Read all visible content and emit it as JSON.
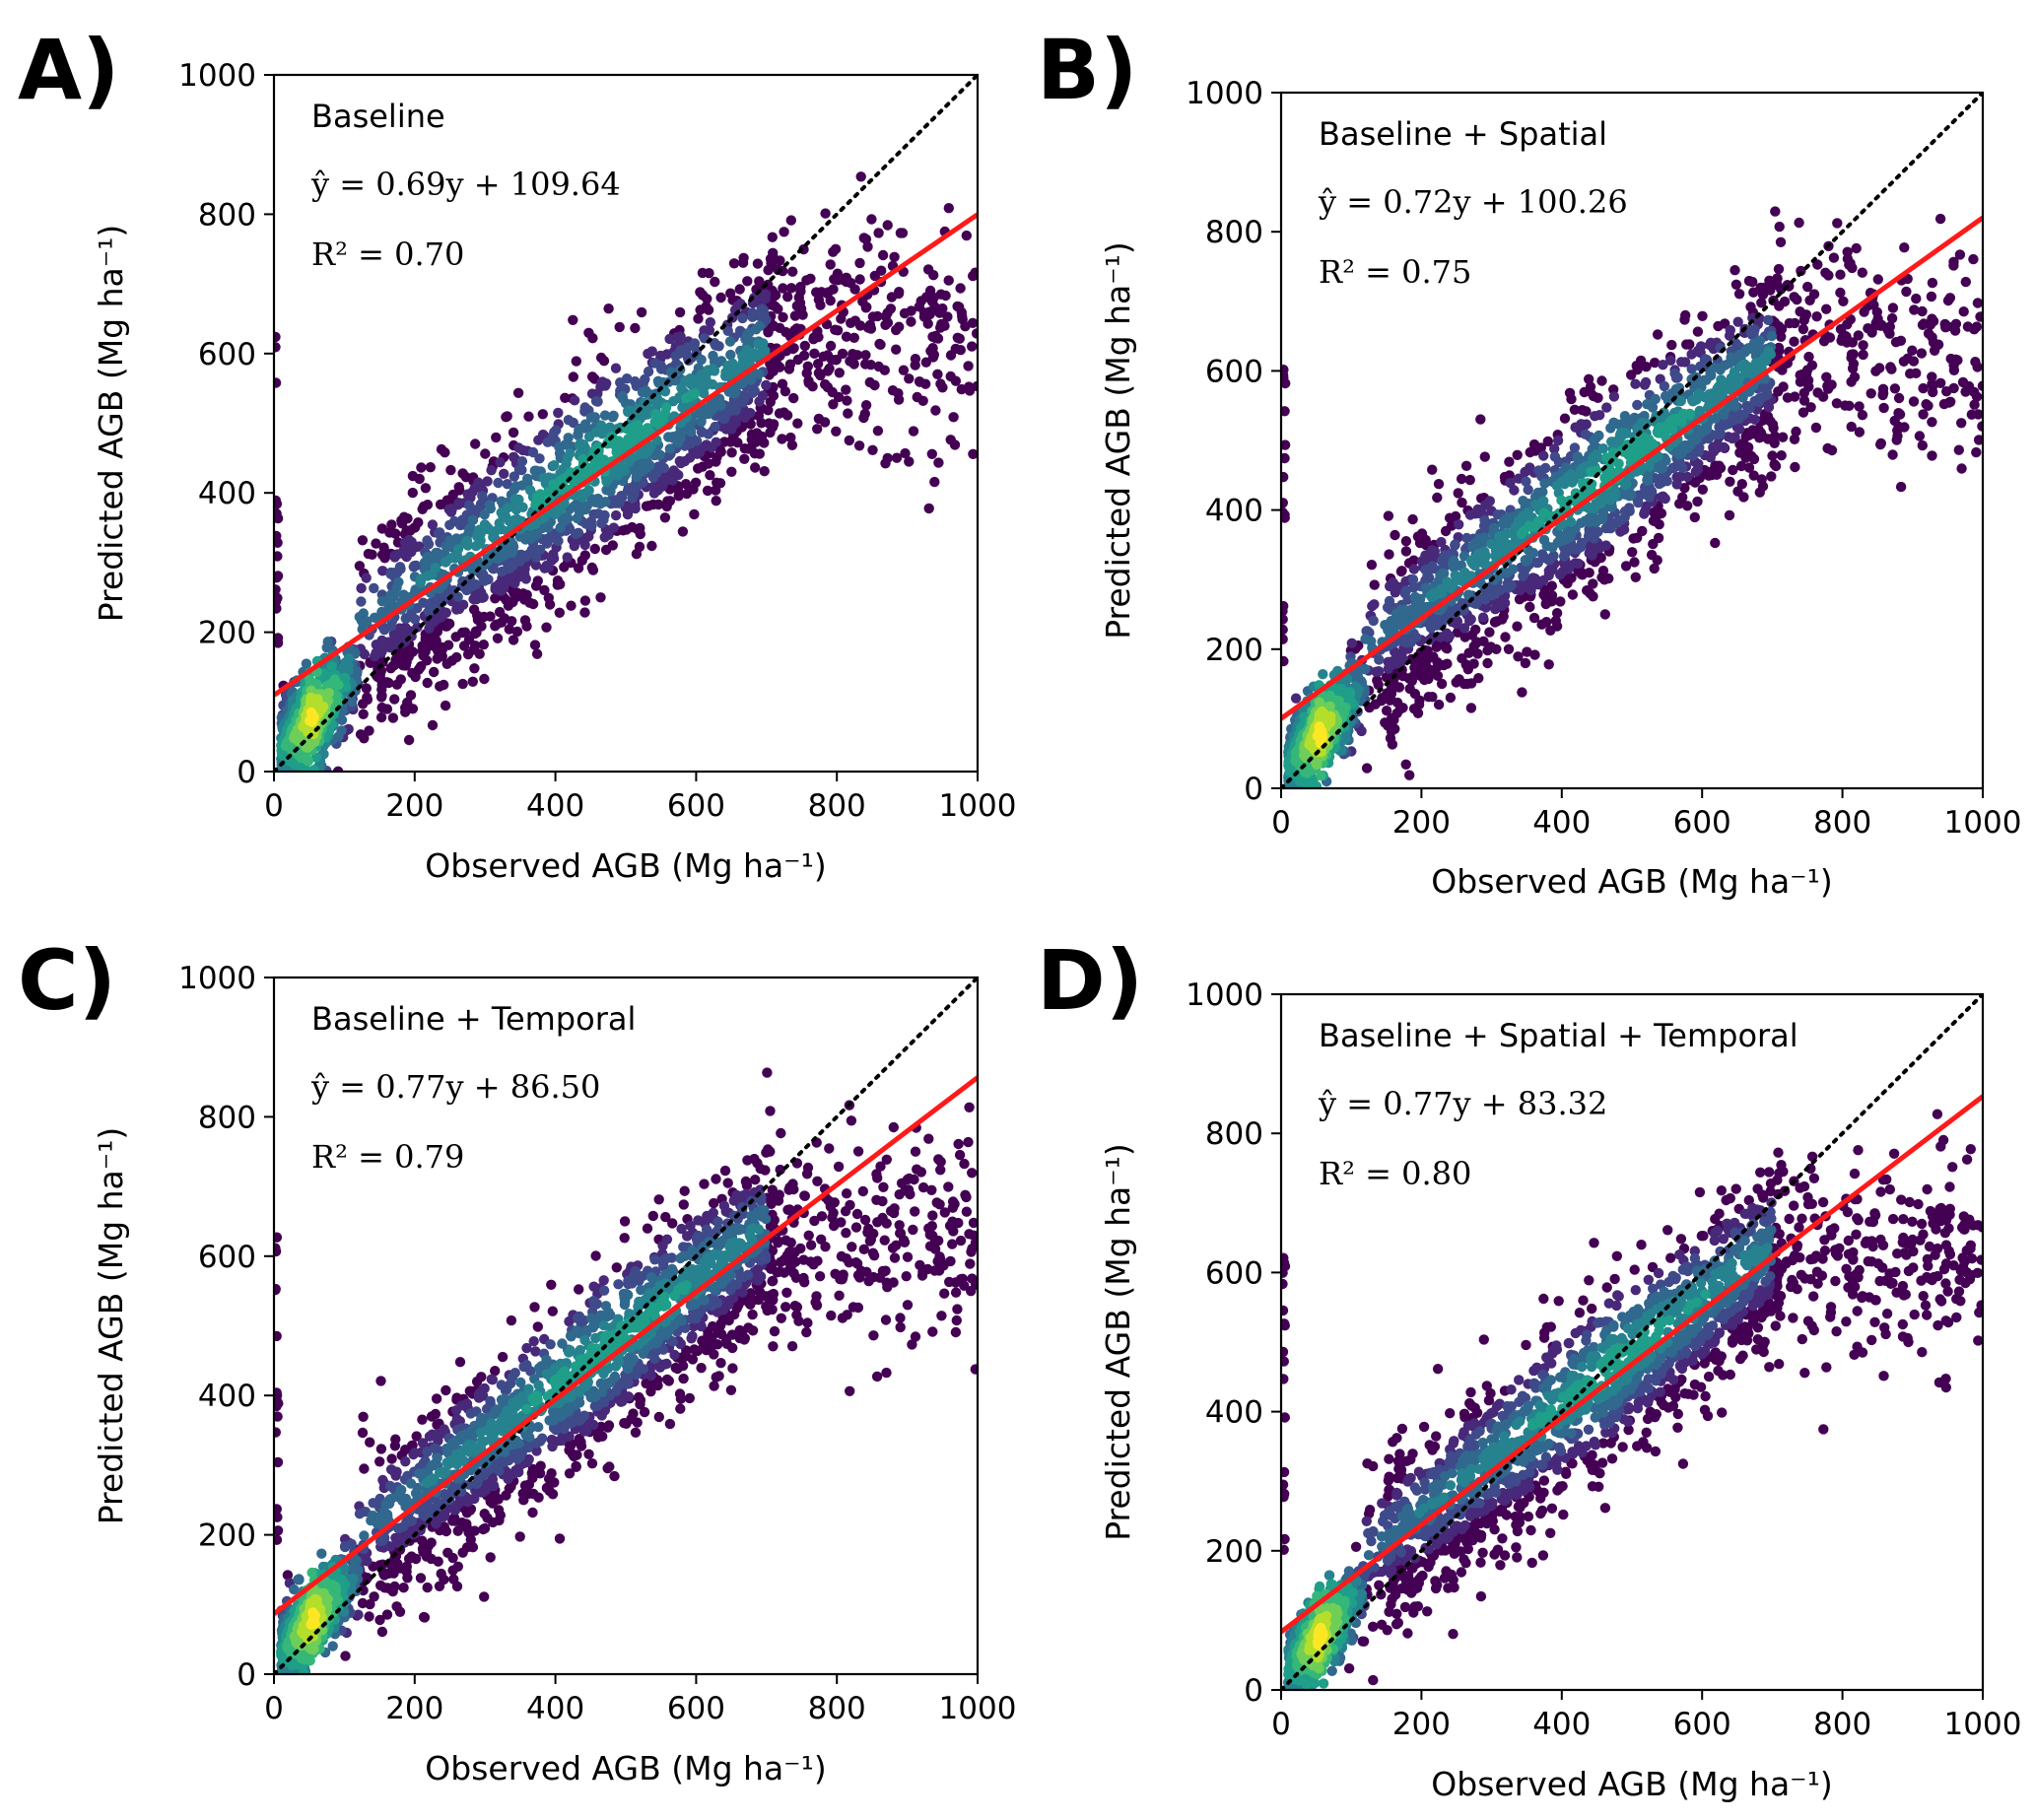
{
  "chart_data": [
    {
      "type": "scatter",
      "panel_label": "A)",
      "title": "Baseline",
      "equation": "ŷ = 0.69y + 109.64",
      "r2_text": "R² = 0.70",
      "slope": 0.69,
      "intercept": 109.64,
      "r2": 0.7,
      "xlabel": "Observed AGB (Mg ha⁻¹)",
      "ylabel": "Predicted AGB (Mg ha⁻¹)",
      "xlim": [
        0,
        1000
      ],
      "ylim": [
        0,
        1000
      ],
      "xticks": [
        "0",
        "200",
        "400",
        "600",
        "800",
        "1000"
      ],
      "yticks": [
        "0",
        "200",
        "400",
        "600",
        "800",
        "1000"
      ],
      "series": [
        {
          "name": "1:1 line",
          "style": "dotted",
          "color": "#000000",
          "x": [
            0,
            1000
          ],
          "y": [
            0,
            1000
          ]
        },
        {
          "name": "Regression fit",
          "style": "solid",
          "color": "#ff1a1a",
          "x": [
            0,
            1000
          ],
          "y": [
            109.64,
            799.64
          ]
        }
      ],
      "density_points_note": "dense point cloud, colormap viridis"
    },
    {
      "type": "scatter",
      "panel_label": "B)",
      "title": "Baseline + Spatial",
      "equation": "ŷ = 0.72y + 100.26",
      "r2_text": "R² = 0.75",
      "slope": 0.72,
      "intercept": 100.26,
      "r2": 0.75,
      "xlabel": "Observed AGB (Mg ha⁻¹)",
      "ylabel": "Predicted AGB (Mg ha⁻¹)",
      "xlim": [
        0,
        1000
      ],
      "ylim": [
        0,
        1000
      ],
      "xticks": [
        "0",
        "200",
        "400",
        "600",
        "800",
        "1000"
      ],
      "yticks": [
        "0",
        "200",
        "400",
        "600",
        "800",
        "1000"
      ],
      "series": [
        {
          "name": "1:1 line",
          "style": "dotted",
          "color": "#000000",
          "x": [
            0,
            1000
          ],
          "y": [
            0,
            1000
          ]
        },
        {
          "name": "Regression fit",
          "style": "solid",
          "color": "#ff1a1a",
          "x": [
            0,
            1000
          ],
          "y": [
            100.26,
            820.26
          ]
        }
      ],
      "density_points_note": "dense point cloud, colormap viridis"
    },
    {
      "type": "scatter",
      "panel_label": "C)",
      "title": "Baseline + Temporal",
      "equation": "ŷ = 0.77y + 86.50",
      "r2_text": "R² = 0.79",
      "slope": 0.77,
      "intercept": 86.5,
      "r2": 0.79,
      "xlabel": "Observed AGB (Mg ha⁻¹)",
      "ylabel": "Predicted AGB (Mg ha⁻¹)",
      "xlim": [
        0,
        1000
      ],
      "ylim": [
        0,
        1000
      ],
      "xticks": [
        "0",
        "200",
        "400",
        "600",
        "800",
        "1000"
      ],
      "yticks": [
        "0",
        "200",
        "400",
        "600",
        "800",
        "1000"
      ],
      "series": [
        {
          "name": "1:1 line",
          "style": "dotted",
          "color": "#000000",
          "x": [
            0,
            1000
          ],
          "y": [
            0,
            1000
          ]
        },
        {
          "name": "Regression fit",
          "style": "solid",
          "color": "#ff1a1a",
          "x": [
            0,
            1000
          ],
          "y": [
            86.5,
            856.5
          ]
        }
      ],
      "density_points_note": "dense point cloud, colormap viridis"
    },
    {
      "type": "scatter",
      "panel_label": "D)",
      "title": "Baseline + Spatial + Temporal",
      "equation": "ŷ = 0.77y + 83.32",
      "r2_text": "R² = 0.80",
      "slope": 0.77,
      "intercept": 83.32,
      "r2": 0.8,
      "xlabel": "Observed AGB (Mg ha⁻¹)",
      "ylabel": "Predicted AGB (Mg ha⁻¹)",
      "xlim": [
        0,
        1000
      ],
      "ylim": [
        0,
        1000
      ],
      "xticks": [
        "0",
        "200",
        "400",
        "600",
        "800",
        "1000"
      ],
      "yticks": [
        "0",
        "200",
        "400",
        "600",
        "800",
        "1000"
      ],
      "series": [
        {
          "name": "1:1 line",
          "style": "dotted",
          "color": "#000000",
          "x": [
            0,
            1000
          ],
          "y": [
            0,
            1000
          ]
        },
        {
          "name": "Regression fit",
          "style": "solid",
          "color": "#ff1a1a",
          "x": [
            0,
            1000
          ],
          "y": [
            83.32,
            853.32
          ]
        }
      ],
      "density_points_note": "dense point cloud, colormap viridis"
    }
  ]
}
